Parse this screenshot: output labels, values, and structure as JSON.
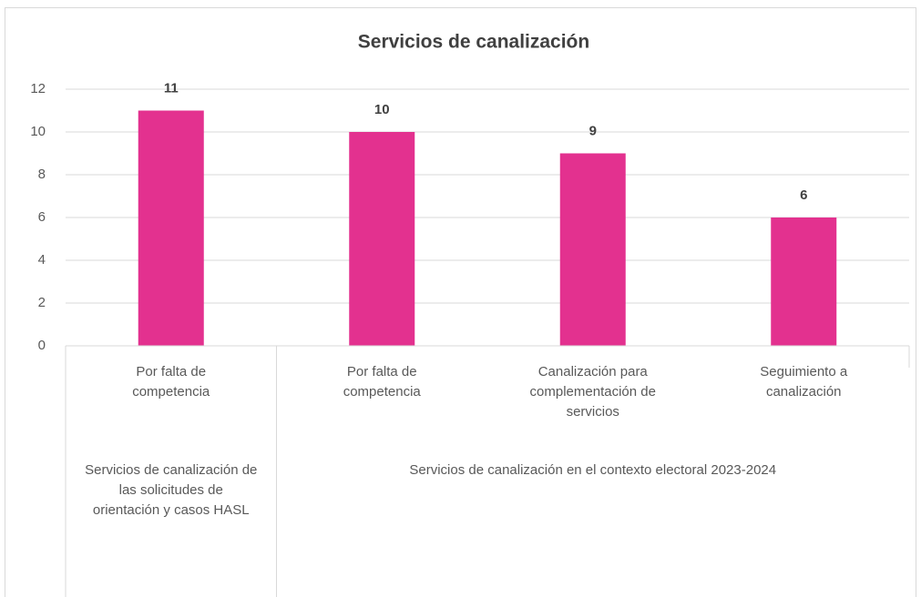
{
  "chart_data": {
    "type": "bar",
    "title": "Servicios de canalización",
    "groups": [
      {
        "name": "Servicios de canalización de las solicitudes de orientación y casos HASL",
        "categories": [
          "Por falta de competencia"
        ]
      },
      {
        "name": "Servicios de canalización en el contexto electoral 2023-2024",
        "categories": [
          "Por falta de competencia",
          "Canalización para complementación de servicios",
          "Seguimiento a canalización"
        ]
      }
    ],
    "values": [
      11,
      10,
      9,
      6
    ],
    "color": "#e3318f",
    "ylim": [
      0,
      12
    ],
    "yticks": [
      0,
      2,
      4,
      6,
      8,
      10,
      12
    ],
    "grid": true
  }
}
